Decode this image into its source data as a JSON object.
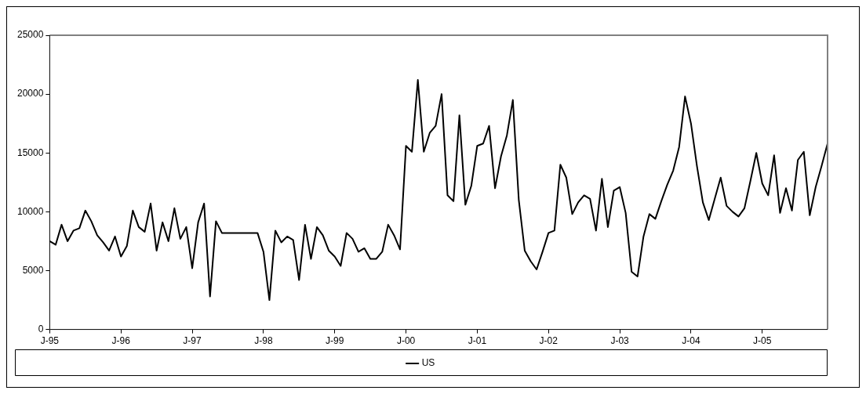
{
  "chart_data": {
    "type": "line",
    "categories": [
      "J-95",
      null,
      null,
      null,
      null,
      null,
      null,
      null,
      null,
      null,
      null,
      null,
      "J-96",
      null,
      null,
      null,
      null,
      null,
      null,
      null,
      null,
      null,
      null,
      null,
      "J-97",
      null,
      null,
      null,
      null,
      null,
      null,
      null,
      null,
      null,
      null,
      null,
      "J-98",
      null,
      null,
      null,
      null,
      null,
      null,
      null,
      null,
      null,
      null,
      null,
      "J-99",
      null,
      null,
      null,
      null,
      null,
      null,
      null,
      null,
      null,
      null,
      null,
      "J-00",
      null,
      null,
      null,
      null,
      null,
      null,
      null,
      null,
      null,
      null,
      null,
      "J-01",
      null,
      null,
      null,
      null,
      null,
      null,
      null,
      null,
      null,
      null,
      null,
      "J-02",
      null,
      null,
      null,
      null,
      null,
      null,
      null,
      null,
      null,
      null,
      null,
      "J-03",
      null,
      null,
      null,
      null,
      null,
      null,
      null,
      null,
      null,
      null,
      null,
      "J-04",
      null,
      null,
      null,
      null,
      null,
      null,
      null,
      null,
      null,
      null,
      null,
      "J-05",
      null,
      null,
      null,
      null,
      null,
      null,
      null,
      null,
      null,
      null,
      null
    ],
    "series": [
      {
        "name": "US",
        "color": "#000000",
        "values": [
          7500,
          7200,
          8900,
          7500,
          8400,
          8600,
          10100,
          9200,
          8000,
          7400,
          6700,
          7900,
          6200,
          7100,
          10100,
          8700,
          8300,
          10700,
          6700,
          9100,
          7500,
          10300,
          7700,
          8700,
          5200,
          9100,
          10700,
          2800,
          9200,
          8200,
          8200,
          8200,
          8200,
          8200,
          8200,
          8200,
          6600,
          2500,
          8400,
          7400,
          7900,
          7600,
          4200,
          8900,
          6000,
          8700,
          8000,
          6700,
          6200,
          5400,
          8200,
          7700,
          6600,
          6900,
          6000,
          6000,
          6600,
          8900,
          8000,
          6800,
          15600,
          15100,
          21200,
          15100,
          16700,
          17300,
          20000,
          11400,
          10900,
          18200,
          10600,
          12200,
          15600,
          15800,
          17300,
          12000,
          14700,
          16500,
          19500,
          11000,
          6700,
          5800,
          5100,
          6600,
          8200,
          8400,
          14000,
          12900,
          9800,
          10800,
          11400,
          11100,
          8400,
          12800,
          8700,
          11800,
          12100,
          9900,
          4900,
          4500,
          7900,
          9800,
          9400,
          10900,
          12300,
          13500,
          15500,
          19800,
          17500,
          13900,
          10800,
          9300,
          11100,
          12900,
          10500,
          10000,
          9600,
          10300,
          12600,
          15000,
          12400,
          11400,
          14800,
          9900,
          12000,
          10100,
          14400,
          15100,
          9700,
          12100,
          13900,
          15800
        ]
      }
    ],
    "ylim": [
      0,
      25000
    ],
    "yticks": [
      0,
      5000,
      10000,
      15000,
      20000,
      25000
    ],
    "grid": false,
    "legend": "bottom",
    "marker": "none",
    "line_style": "solid"
  }
}
